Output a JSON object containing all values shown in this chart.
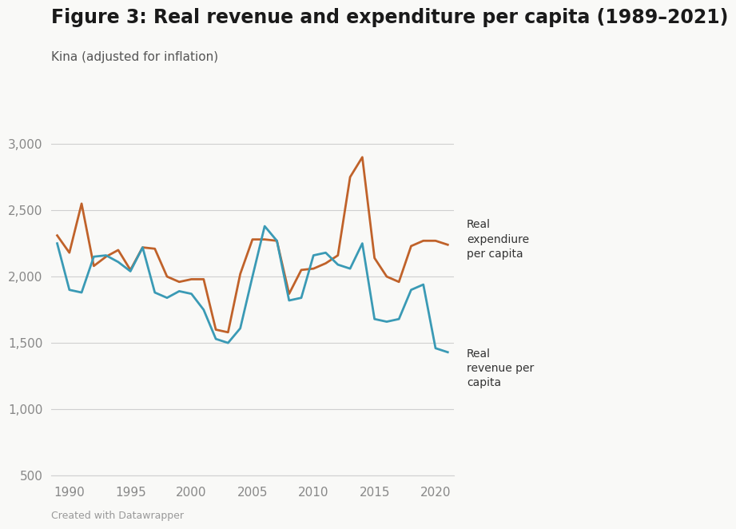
{
  "title": "Figure 3: Real revenue and expenditure per capita (1989–2021)",
  "ylabel": "Kina (adjusted for inflation)",
  "footer": "Created with Datawrapper",
  "years": [
    1989,
    1990,
    1991,
    1992,
    1993,
    1994,
    1995,
    1996,
    1997,
    1998,
    1999,
    2000,
    2001,
    2002,
    2003,
    2004,
    2005,
    2006,
    2007,
    2008,
    2009,
    2010,
    2011,
    2012,
    2013,
    2014,
    2015,
    2016,
    2017,
    2018,
    2019,
    2020,
    2021
  ],
  "real_expenditure": [
    2310,
    2180,
    2550,
    2080,
    2150,
    2200,
    2050,
    2220,
    2210,
    2000,
    1960,
    1980,
    1980,
    1600,
    1580,
    2020,
    2280,
    2280,
    2270,
    1870,
    2050,
    2060,
    2100,
    2160,
    2750,
    2900,
    2140,
    2000,
    1960,
    2230,
    2270,
    2270,
    2240
  ],
  "real_revenue": [
    2250,
    1900,
    1880,
    2150,
    2160,
    2110,
    2040,
    2220,
    1880,
    1840,
    1890,
    1870,
    1750,
    1530,
    1500,
    1610,
    2000,
    2380,
    2270,
    1820,
    1840,
    2160,
    2180,
    2090,
    2060,
    2250,
    1680,
    1660,
    1680,
    1900,
    1940,
    1460,
    1430
  ],
  "expenditure_color": "#c0622a",
  "revenue_color": "#3a9ab5",
  "background_color": "#f9f9f7",
  "ylim": [
    500,
    3200
  ],
  "yticks": [
    500,
    1000,
    1500,
    2000,
    2500,
    3000
  ],
  "xticks": [
    1990,
    1995,
    2000,
    2005,
    2010,
    2015,
    2020
  ],
  "grid_color": "#d0d0d0",
  "title_fontsize": 17,
  "ylabel_fontsize": 11,
  "tick_fontsize": 11,
  "line_width": 2.0,
  "label_expenditure": "Real\nexpendiure\nper capita",
  "label_revenue": "Real\nrevenue per\ncapita",
  "annotation_fontsize": 10
}
